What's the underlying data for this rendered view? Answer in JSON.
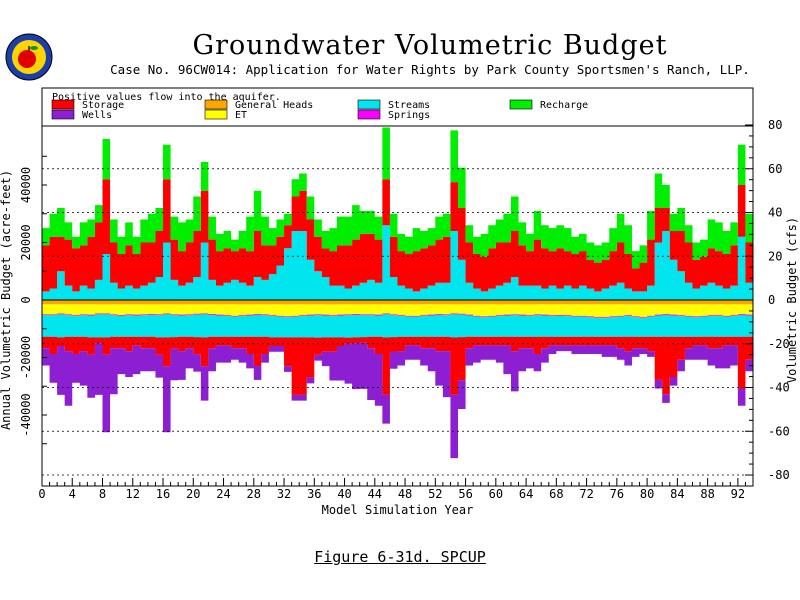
{
  "header": {
    "title": "Groundwater Volumetric Budget",
    "subtitle": "Case No. 96CW014: Application for Water Rights by Park County Sportsmen's Ranch, LLP."
  },
  "footer": {
    "caption": "Figure 6-31d.  SPCUP"
  },
  "colors": {
    "Storage": "#ff0000",
    "General Heads": "#ffa500",
    "Streams": "#00e5ee",
    "Recharge": "#00ee00",
    "Wells": "#8b1fd1",
    "ET": "#ffff00",
    "Springs": "#ff00ff"
  },
  "chart_data": {
    "type": "area",
    "subtype": "stacked step-area (positive above zero, negative below)",
    "legend_note": "Positive values flow into the aquifer.",
    "legend": [
      "Storage",
      "General Heads",
      "Streams",
      "Recharge",
      "Wells",
      "ET",
      "Springs"
    ],
    "xlabel": "Model Simulation Year",
    "ylabel_left": "Annual Volumetric Budget (acre-feet)",
    "ylabel_right": "Volumetric Budget (cfs)",
    "xlim": [
      0,
      94
    ],
    "ylim_left": [
      -59000,
      59000
    ],
    "ylim_right": [
      -80,
      80
    ],
    "x_ticks": [
      "0",
      "4",
      "8",
      "12",
      "16",
      "20",
      "24",
      "28",
      "32",
      "36",
      "40",
      "44",
      "48",
      "52",
      "56",
      "60",
      "64",
      "68",
      "72",
      "76",
      "80",
      "84",
      "88",
      "92"
    ],
    "y_ticks_left": [
      "40000",
      "20000",
      "0",
      "-20000",
      "-40000"
    ],
    "y_ticks_right": [
      "80",
      "60",
      "40",
      "20",
      "0",
      "-20",
      "-40",
      "-60",
      "-80"
    ],
    "grid": "dotted horizontal lines at right-axis ticks",
    "legend_position": "top, inside plot",
    "years": [
      0,
      1,
      2,
      3,
      4,
      5,
      6,
      7,
      8,
      9,
      10,
      11,
      12,
      13,
      14,
      15,
      16,
      17,
      18,
      19,
      20,
      21,
      22,
      23,
      24,
      25,
      26,
      27,
      28,
      29,
      30,
      31,
      32,
      33,
      34,
      35,
      36,
      37,
      38,
      39,
      40,
      41,
      42,
      43,
      44,
      45,
      46,
      47,
      48,
      49,
      50,
      51,
      52,
      53,
      54,
      55,
      56,
      57,
      58,
      59,
      60,
      61,
      62,
      63,
      64,
      65,
      66,
      67,
      68,
      69,
      70,
      71,
      72,
      73,
      74,
      75,
      76,
      77,
      78,
      79,
      80,
      81,
      82,
      83,
      84,
      85,
      86,
      87,
      88,
      89,
      90,
      91,
      92,
      93
    ],
    "series": [
      {
        "name": "Streams",
        "sign": "positive",
        "values": [
          3000,
          4000,
          10000,
          5000,
          3000,
          5000,
          4000,
          7000,
          16000,
          6000,
          4000,
          5000,
          4000,
          5000,
          6000,
          8000,
          20000,
          7000,
          5000,
          6000,
          8000,
          20000,
          7000,
          5000,
          6000,
          7000,
          6000,
          5000,
          8000,
          7000,
          9000,
          12000,
          18000,
          24000,
          24000,
          14000,
          10000,
          8000,
          5000,
          5000,
          4000,
          5000,
          6000,
          7000,
          6000,
          26000,
          8000,
          5000,
          4000,
          3000,
          4000,
          5000,
          6000,
          6000,
          24000,
          14000,
          6000,
          4000,
          3000,
          4000,
          5000,
          6000,
          8000,
          5000,
          5000,
          5000,
          4000,
          5000,
          4000,
          5000,
          4000,
          5000,
          4000,
          3000,
          4000,
          5000,
          6000,
          4000,
          3000,
          3000,
          5000,
          20000,
          24000,
          14000,
          10000,
          6000,
          4000,
          5000,
          6000,
          5000,
          4000,
          5000,
          22000,
          6000
        ]
      },
      {
        "name": "Storage",
        "sign": "positive",
        "values": [
          16000,
          18000,
          12000,
          16000,
          15000,
          14000,
          18000,
          20000,
          26000,
          14000,
          12000,
          14000,
          12000,
          15000,
          14000,
          16000,
          22000,
          14000,
          12000,
          14000,
          16000,
          18000,
          14000,
          12000,
          12000,
          10000,
          12000,
          12000,
          16000,
          12000,
          10000,
          10000,
          8000,
          12000,
          14000,
          14000,
          12000,
          10000,
          12000,
          14000,
          15000,
          16000,
          17000,
          16000,
          15000,
          16000,
          14000,
          12000,
          12000,
          14000,
          14000,
          14000,
          15000,
          16000,
          17000,
          18000,
          14000,
          12000,
          12000,
          14000,
          15000,
          14000,
          16000,
          14000,
          12000,
          16000,
          14000,
          12000,
          14000,
          12000,
          12000,
          12000,
          10000,
          10000,
          10000,
          12000,
          14000,
          12000,
          8000,
          10000,
          16000,
          12000,
          8000,
          10000,
          14000,
          14000,
          10000,
          10000,
          12000,
          12000,
          12000,
          14000,
          18000,
          14000
        ]
      },
      {
        "name": "Recharge",
        "sign": "positive",
        "values": [
          6000,
          8000,
          10000,
          6000,
          4000,
          8000,
          6000,
          6000,
          14000,
          8000,
          6000,
          8000,
          6000,
          8000,
          10000,
          8000,
          12000,
          8000,
          10000,
          8000,
          12000,
          10000,
          8000,
          6000,
          6000,
          4000,
          6000,
          12000,
          14000,
          10000,
          6000,
          6000,
          4000,
          6000,
          6000,
          8000,
          6000,
          6000,
          8000,
          10000,
          10000,
          12000,
          8000,
          8000,
          8000,
          18000,
          8000,
          6000,
          6000,
          8000,
          6000,
          6000,
          8000,
          8000,
          18000,
          14000,
          6000,
          6000,
          8000,
          8000,
          8000,
          10000,
          12000,
          8000,
          6000,
          10000,
          8000,
          8000,
          8000,
          8000,
          6000,
          6000,
          6000,
          6000,
          6000,
          8000,
          10000,
          10000,
          6000,
          6000,
          10000,
          12000,
          8000,
          6000,
          8000,
          6000,
          6000,
          6000,
          10000,
          10000,
          8000,
          8000,
          14000,
          10000
        ]
      },
      {
        "name": "General Heads",
        "sign": "negative",
        "values": [
          -1500,
          -1500,
          -1500,
          -1500,
          -1500,
          -1500,
          -1500,
          -1500,
          -1500,
          -1500,
          -1500,
          -1500,
          -1500,
          -1500,
          -1500,
          -1500,
          -1500,
          -1500,
          -1500,
          -1500,
          -1500,
          -1500,
          -1500,
          -1500,
          -1500,
          -1500,
          -1500,
          -1500,
          -1500,
          -1500,
          -1500,
          -1500,
          -1500,
          -1500,
          -1500,
          -1500,
          -1500,
          -1500,
          -1500,
          -1500,
          -1500,
          -1500,
          -1500,
          -1500,
          -1500,
          -1500,
          -1500,
          -1500,
          -1500,
          -1500,
          -1500,
          -1500,
          -1500,
          -1500,
          -1500,
          -1500,
          -1500,
          -1500,
          -1500,
          -1500,
          -1500,
          -1500,
          -1500,
          -1500,
          -1500,
          -1500,
          -1500,
          -1500,
          -1500,
          -1500,
          -1500,
          -1500,
          -1500,
          -1500,
          -1500,
          -1500,
          -1500,
          -1500,
          -1500,
          -1500,
          -1500,
          -1500,
          -1500,
          -1500,
          -1500,
          -1500,
          -1500,
          -1500,
          -1500,
          -1500,
          -1500,
          -1500,
          -1500,
          -1500
        ]
      },
      {
        "name": "ET",
        "sign": "negative",
        "values": [
          -3500,
          -3500,
          -3200,
          -3500,
          -3800,
          -3500,
          -3600,
          -3200,
          -3200,
          -3500,
          -3700,
          -3500,
          -3600,
          -3500,
          -3400,
          -3500,
          -3200,
          -3500,
          -3600,
          -3500,
          -3300,
          -3200,
          -3400,
          -3600,
          -3800,
          -4000,
          -3800,
          -3600,
          -3400,
          -3500,
          -3800,
          -4000,
          -4200,
          -4000,
          -3800,
          -3600,
          -3500,
          -3600,
          -3800,
          -3600,
          -3500,
          -3400,
          -3500,
          -3500,
          -3600,
          -3200,
          -3500,
          -3800,
          -4000,
          -4000,
          -3800,
          -3600,
          -3400,
          -3500,
          -3200,
          -3300,
          -3600,
          -4000,
          -4200,
          -4000,
          -3800,
          -3600,
          -3500,
          -3600,
          -3800,
          -3500,
          -3600,
          -3800,
          -3700,
          -3800,
          -4000,
          -4000,
          -4200,
          -4500,
          -4500,
          -4200,
          -4000,
          -3800,
          -4200,
          -4500,
          -4000,
          -3600,
          -3400,
          -3600,
          -3800,
          -4000,
          -4200,
          -4000,
          -3800,
          -3800,
          -4000,
          -3800,
          -3400,
          -3600
        ]
      },
      {
        "name": "Springs",
        "sign": "negative",
        "values": [
          -300,
          -300,
          -300,
          -300,
          -300,
          -300,
          -300,
          -300,
          -300,
          -300,
          -300,
          -300,
          -300,
          -300,
          -300,
          -300,
          -300,
          -300,
          -300,
          -300,
          -300,
          -300,
          -300,
          -300,
          -300,
          -300,
          -300,
          -300,
          -300,
          -300,
          -300,
          -300,
          -300,
          -300,
          -300,
          -300,
          -300,
          -300,
          -300,
          -300,
          -300,
          -300,
          -300,
          -300,
          -300,
          -300,
          -300,
          -300,
          -300,
          -300,
          -300,
          -300,
          -300,
          -300,
          -300,
          -300,
          -300,
          -300,
          -300,
          -300,
          -300,
          -300,
          -300,
          -300,
          -300,
          -300,
          -300,
          -300,
          -300,
          -300,
          -300,
          -300,
          -300,
          -300,
          -300,
          -300,
          -300,
          -300,
          -300,
          -300,
          -300,
          -300,
          -300,
          -300,
          -300,
          -300,
          -300,
          -300,
          -300,
          -300,
          -300,
          -300,
          -300,
          -300
        ]
      },
      {
        "name": "Streams",
        "sign": "negative",
        "values": [
          -7500,
          -7500,
          -8000,
          -7500,
          -7200,
          -7500,
          -7600,
          -8000,
          -8000,
          -7500,
          -7300,
          -7500,
          -7400,
          -7500,
          -7600,
          -7700,
          -8000,
          -7600,
          -7400,
          -7500,
          -7800,
          -8000,
          -7600,
          -7400,
          -7200,
          -7000,
          -7200,
          -7400,
          -7600,
          -7500,
          -7400,
          -7200,
          -7000,
          -7200,
          -7400,
          -7600,
          -7800,
          -7600,
          -7400,
          -7600,
          -7800,
          -7800,
          -7600,
          -7500,
          -7400,
          -8000,
          -7600,
          -7200,
          -7000,
          -7000,
          -7200,
          -7400,
          -7600,
          -7500,
          -8000,
          -7800,
          -7400,
          -7000,
          -6800,
          -7000,
          -7200,
          -7400,
          -7500,
          -7400,
          -7200,
          -7500,
          -7400,
          -7200,
          -7300,
          -7200,
          -7000,
          -7000,
          -6800,
          -6500,
          -6500,
          -6800,
          -7000,
          -7200,
          -6800,
          -6500,
          -7000,
          -7400,
          -7600,
          -7400,
          -7200,
          -7000,
          -6800,
          -7000,
          -7200,
          -7200,
          -7000,
          -7200,
          -7600,
          -7400
        ]
      },
      {
        "name": "Storage",
        "sign": "negative",
        "values": [
          -4000,
          -6000,
          -3000,
          -5000,
          -6000,
          -5000,
          -6000,
          -2000,
          -6000,
          -4000,
          -4000,
          -5000,
          -3000,
          -4000,
          -4000,
          -6000,
          -10000,
          -4000,
          -5000,
          -4000,
          -6000,
          -10000,
          -4000,
          -3000,
          -3000,
          -4000,
          -4000,
          -6000,
          -10000,
          -6000,
          -3000,
          -3000,
          -10000,
          -20000,
          -20000,
          -14000,
          -6000,
          -5000,
          -5000,
          -3000,
          -2000,
          -2000,
          -2000,
          -4000,
          -6000,
          -20000,
          -5000,
          -5000,
          -3000,
          -3000,
          -4000,
          -4000,
          -5000,
          -5000,
          -20000,
          -15000,
          -4000,
          -3000,
          -3000,
          -3000,
          -3000,
          -3000,
          -5000,
          -4000,
          -4000,
          -6000,
          -4000,
          -3000,
          -3000,
          -3000,
          -3000,
          -3000,
          -3000,
          -3000,
          -3000,
          -3000,
          -4000,
          -5000,
          -4000,
          -4000,
          -5000,
          -15000,
          -20000,
          -14000,
          -8000,
          -4000,
          -3000,
          -3000,
          -4000,
          -4000,
          -3000,
          -3000,
          -18000,
          -8000
        ]
      },
      {
        "name": "Wells",
        "sign": "negative",
        "values": [
          -6000,
          -10000,
          -17000,
          -19000,
          -10000,
          -12000,
          -15000,
          -18000,
          -27000,
          -16000,
          -9000,
          -9000,
          -10000,
          -8000,
          -8000,
          -8000,
          -23000,
          -11000,
          -10000,
          -7000,
          -6000,
          -12000,
          -8000,
          -6000,
          -6000,
          -4000,
          -5000,
          -5000,
          -5000,
          -3000,
          -2000,
          -2000,
          -2000,
          -2000,
          -2000,
          -2000,
          -2000,
          -5000,
          -10000,
          -12000,
          -14000,
          -16000,
          -16000,
          -18000,
          -18000,
          -10000,
          -6000,
          -5000,
          -5000,
          -5000,
          -6000,
          -8000,
          -12000,
          -16000,
          -22000,
          -10000,
          -6000,
          -6000,
          -5000,
          -5000,
          -6000,
          -10000,
          -14000,
          -8000,
          -7000,
          -6000,
          -5000,
          -3000,
          -2000,
          -2000,
          -3000,
          -3000,
          -3000,
          -3000,
          -4000,
          -4000,
          -4000,
          -5000,
          -3000,
          -2000,
          -2000,
          -3000,
          -3000,
          -3000,
          -4000,
          -4000,
          -5000,
          -5000,
          -6000,
          -7000,
          -8000,
          -7000,
          -6000,
          -4000
        ]
      }
    ]
  }
}
